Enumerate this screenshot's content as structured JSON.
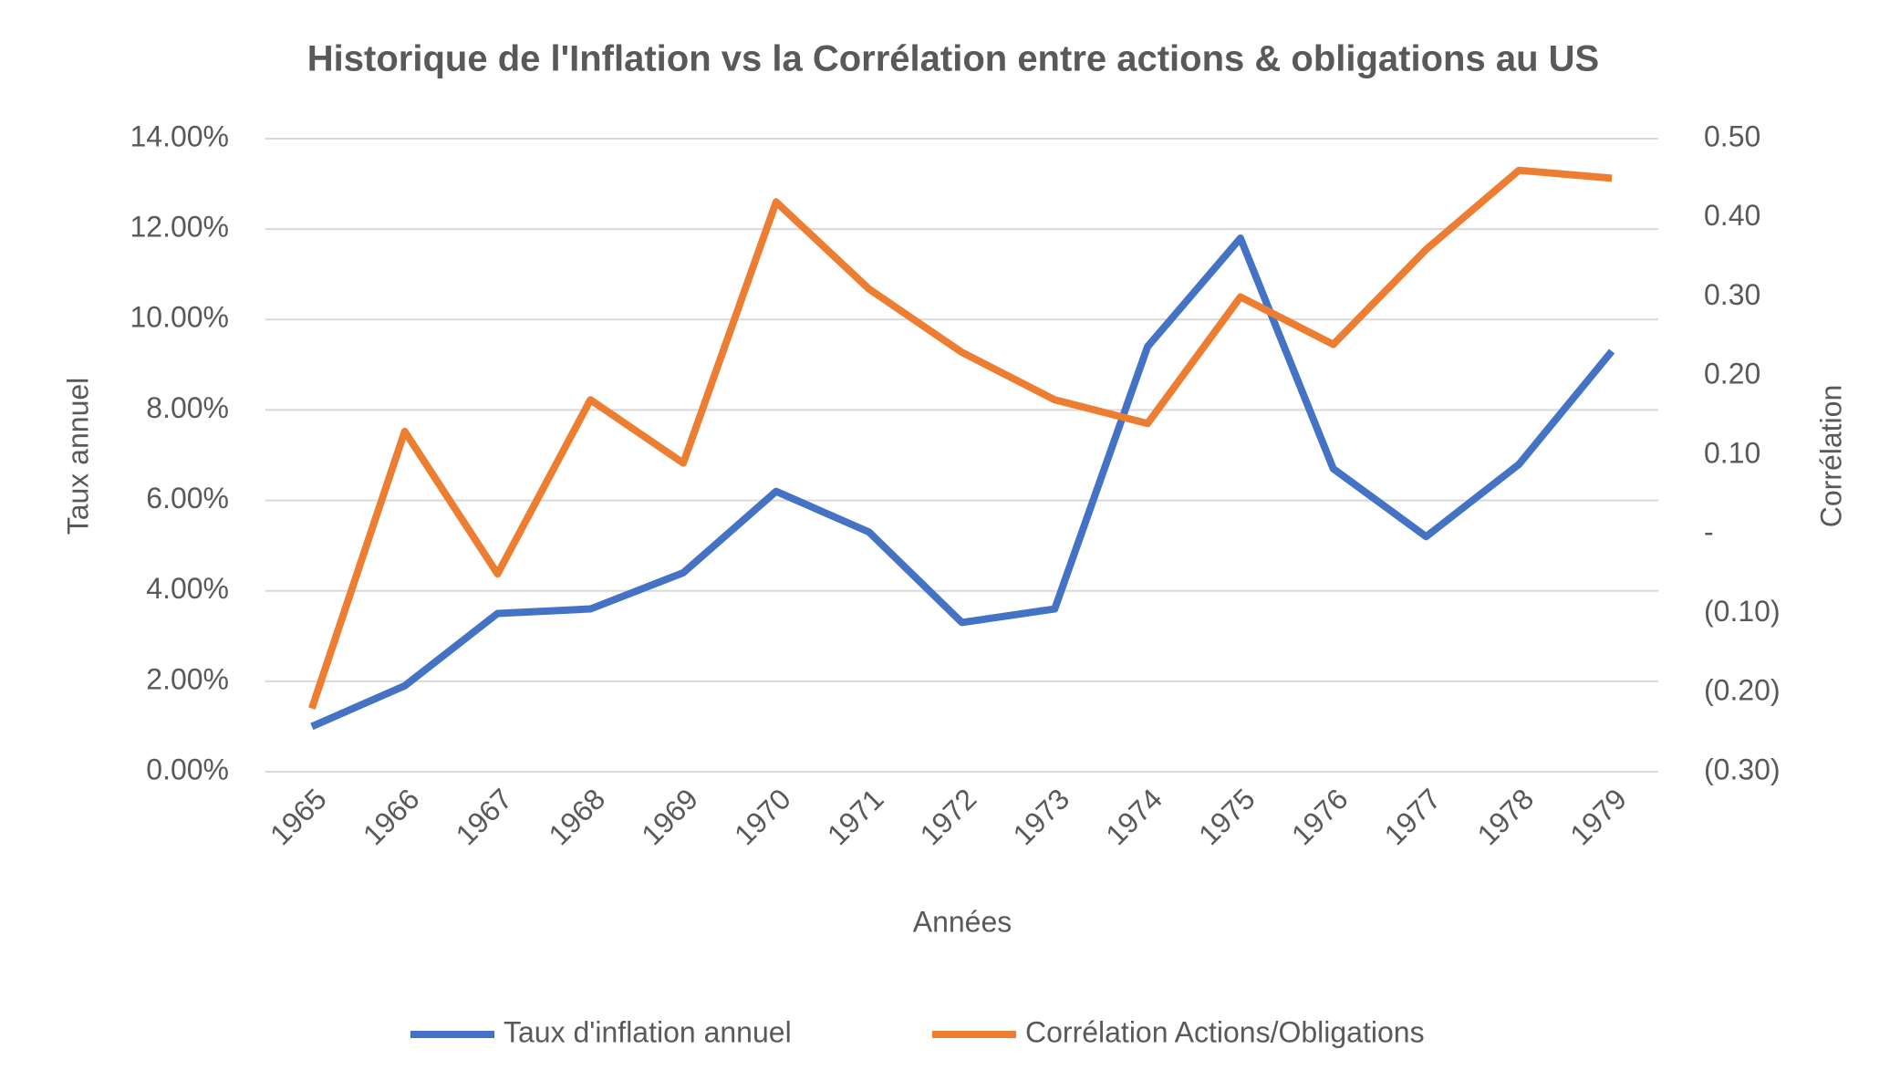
{
  "chart_data": {
    "type": "line",
    "title": "Historique de l'Inflation vs la Corrélation entre actions & obligations au US",
    "x_label": "Années",
    "y_label": "Taux annuel",
    "y2_label": "Corrélation",
    "categories": [
      "1965",
      "1966",
      "1967",
      "1968",
      "1969",
      "1970",
      "1971",
      "1972",
      "1973",
      "1974",
      "1975",
      "1976",
      "1977",
      "1978",
      "1979"
    ],
    "series": [
      {
        "name": "Taux d'inflation annuel",
        "color": "#4472c4",
        "values": [
          1.0,
          1.9,
          3.5,
          3.6,
          4.4,
          6.2,
          5.3,
          3.3,
          3.6,
          9.4,
          11.8,
          6.7,
          5.2,
          6.8,
          9.3
        ]
      },
      {
        "name": "Corrélation Actions/Obligations",
        "color": "#ed7d31",
        "axis": "y2",
        "values": [
          -0.22,
          0.13,
          -0.05,
          0.17,
          0.09,
          0.42,
          0.31,
          0.23,
          0.17,
          0.14,
          0.3,
          0.24,
          0.36,
          0.46,
          0.45
        ]
      }
    ],
    "ylim": [
      0,
      14
    ],
    "yticks": [
      {
        "value": 0,
        "label": "0.00%"
      },
      {
        "value": 2,
        "label": "2.00%"
      },
      {
        "value": 4,
        "label": "4.00%"
      },
      {
        "value": 6,
        "label": "6.00%"
      },
      {
        "value": 8,
        "label": "8.00%"
      },
      {
        "value": 10,
        "label": "10.00%"
      },
      {
        "value": 12,
        "label": "12.00%"
      },
      {
        "value": 14,
        "label": "14.00%"
      }
    ],
    "y2lim": [
      -0.3,
      0.5
    ],
    "y2ticks": [
      {
        "value": -0.3,
        "label": "(0.30)"
      },
      {
        "value": -0.2,
        "label": "(0.20)"
      },
      {
        "value": -0.1,
        "label": "(0.10)"
      },
      {
        "value": 0,
        "label": "-"
      },
      {
        "value": 0.1,
        "label": "0.10"
      },
      {
        "value": 0.2,
        "label": "0.20"
      },
      {
        "value": 0.3,
        "label": "0.30"
      },
      {
        "value": 0.4,
        "label": "0.40"
      },
      {
        "value": 0.5,
        "label": "0.50"
      }
    ],
    "grid": true,
    "legend": "bottom"
  }
}
